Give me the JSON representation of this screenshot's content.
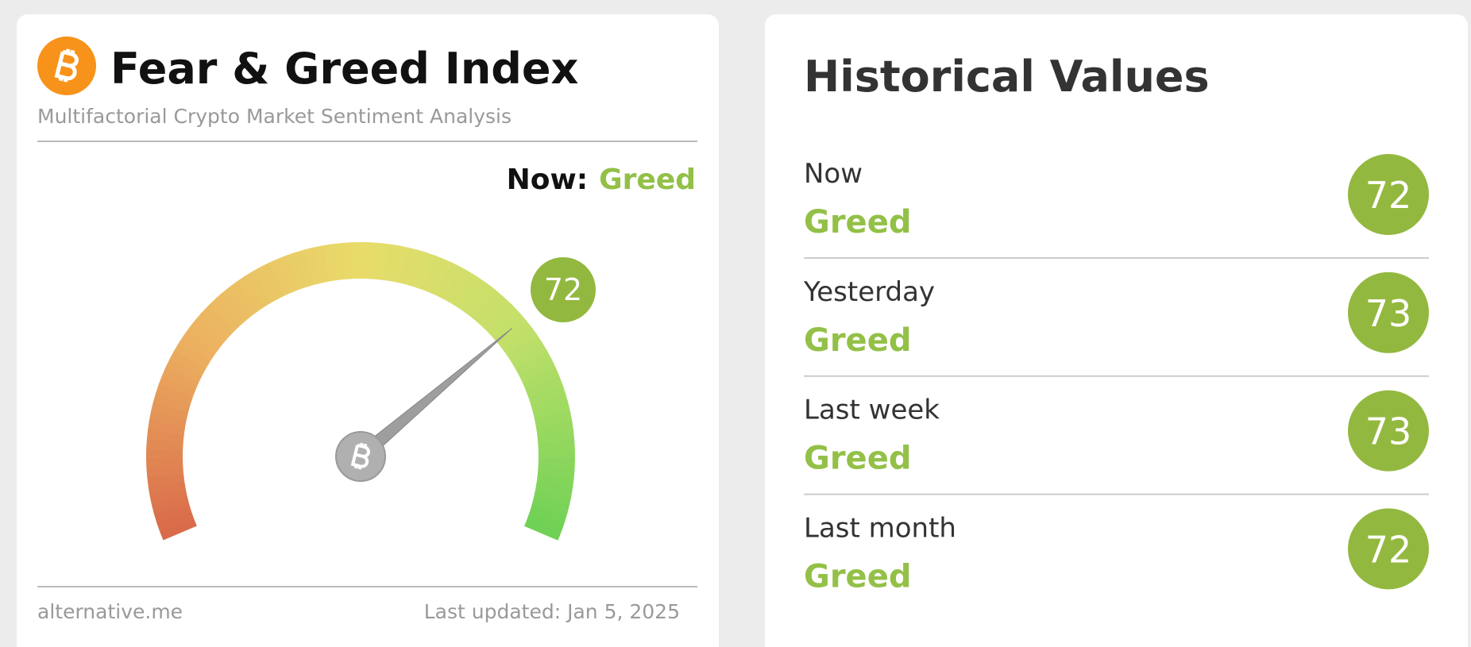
{
  "header": {
    "title": "Fear & Greed Index",
    "subtitle": "Multifactorial Crypto Market Sentiment Analysis"
  },
  "now": {
    "label": "Now:",
    "status": "Greed"
  },
  "gauge": {
    "value": 72,
    "range": [
      0,
      100
    ]
  },
  "footer": {
    "source": "alternative.me",
    "updated": "Last updated: Jan 5, 2025"
  },
  "history": {
    "title": "Historical Values",
    "rows": [
      {
        "label": "Now",
        "status": "Greed",
        "value": 72
      },
      {
        "label": "Yesterday",
        "status": "Greed",
        "value": 73
      },
      {
        "label": "Last week",
        "status": "Greed",
        "value": 73
      },
      {
        "label": "Last month",
        "status": "Greed",
        "value": 72
      }
    ]
  }
}
